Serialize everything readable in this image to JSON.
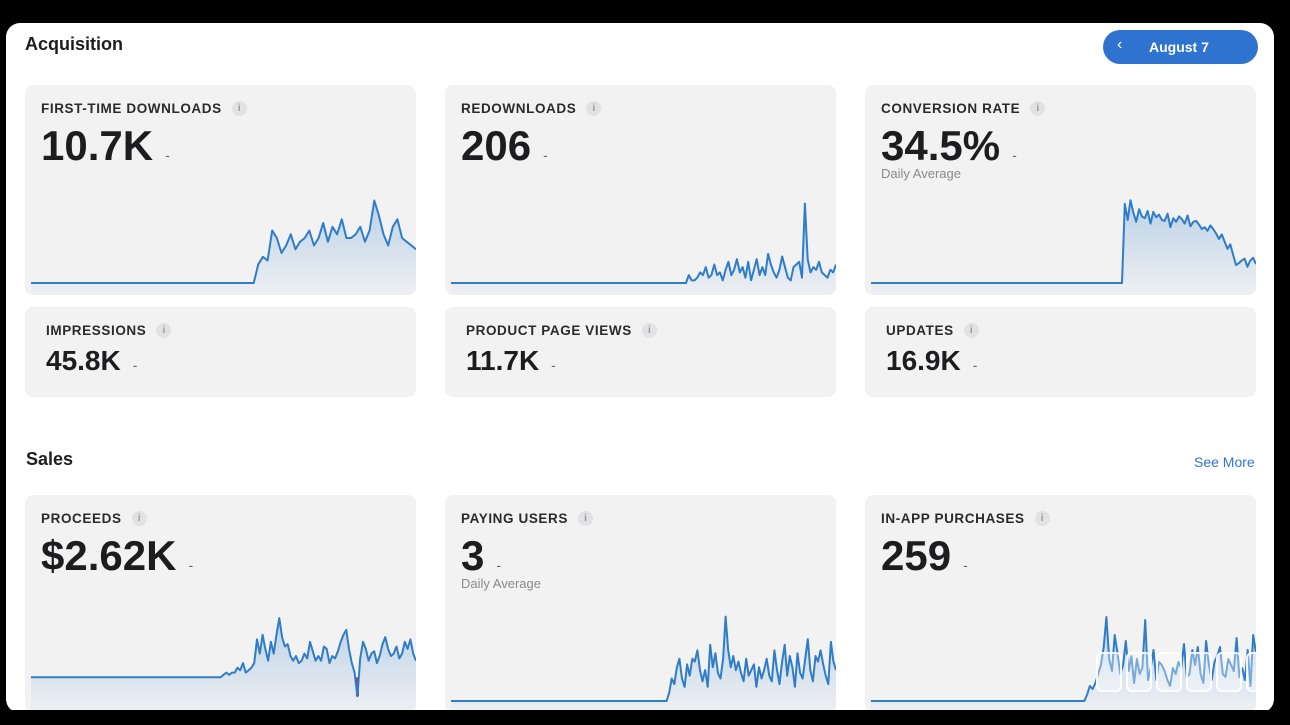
{
  "acquisition": {
    "title": "Acquisition",
    "date_button": "August 7",
    "cards": [
      {
        "label": "FIRST-TIME DOWNLOADS",
        "value": "10.7K",
        "trend": [
          0,
          0,
          0,
          0,
          0,
          0,
          0,
          0,
          0,
          0,
          0,
          0,
          0,
          0,
          0,
          0,
          0,
          0,
          0,
          0,
          0,
          0,
          0,
          0,
          0,
          0,
          0,
          0,
          0,
          0,
          0,
          0,
          0,
          0,
          0,
          0,
          0,
          0,
          0,
          0,
          0,
          0,
          0,
          0,
          0,
          0,
          0,
          0,
          0,
          5,
          7,
          6,
          14,
          12,
          8,
          10,
          13,
          9,
          11,
          12,
          14,
          10,
          12,
          16,
          11,
          15,
          13,
          17,
          12,
          12,
          13,
          15,
          11,
          14,
          22,
          18,
          13,
          10,
          15,
          17,
          12,
          11,
          10,
          9
        ]
      },
      {
        "label": "REDOWNLOADS",
        "value": "206",
        "trend": [
          0,
          0,
          0,
          0,
          0,
          0,
          0,
          0,
          0,
          0,
          0,
          0,
          0,
          0,
          0,
          0,
          0,
          0,
          0,
          0,
          0,
          0,
          0,
          0,
          0,
          0,
          0,
          0,
          0,
          0,
          0,
          0,
          0,
          0,
          0,
          0,
          0,
          0,
          0,
          0,
          0,
          0,
          0,
          0,
          0,
          0,
          0,
          0,
          0,
          0,
          0,
          0,
          0,
          0,
          0,
          0,
          0,
          0,
          0,
          0,
          0,
          0,
          0,
          0,
          0,
          0,
          0,
          0,
          0,
          0,
          0,
          0,
          0,
          0,
          0,
          0,
          0,
          0,
          0,
          0,
          0,
          0,
          0,
          0,
          3,
          1,
          1,
          2,
          4,
          3,
          6,
          2,
          3,
          7,
          3,
          4,
          1,
          5,
          8,
          3,
          5,
          9,
          4,
          6,
          2,
          8,
          1,
          5,
          9,
          3,
          6,
          3,
          11,
          7,
          4,
          2,
          5,
          10,
          6,
          2,
          1,
          6,
          7,
          8,
          2,
          30,
          9,
          4,
          6,
          5,
          8,
          4,
          3,
          2,
          5,
          4,
          7
        ]
      },
      {
        "label": "CONVERSION RATE",
        "value": "34.5%",
        "sub": "Daily Average",
        "trend": [
          0,
          0,
          0,
          0,
          0,
          0,
          0,
          0,
          0,
          0,
          0,
          0,
          0,
          0,
          0,
          0,
          0,
          0,
          0,
          0,
          0,
          0,
          0,
          0,
          0,
          0,
          0,
          0,
          0,
          0,
          0,
          0,
          0,
          0,
          0,
          0,
          0,
          0,
          0,
          0,
          0,
          0,
          0,
          0,
          0,
          0,
          0,
          0,
          0,
          0,
          0,
          0,
          0,
          0,
          0,
          0,
          0,
          0,
          0,
          0,
          0,
          0,
          0,
          0,
          0,
          0,
          0,
          0,
          0,
          0,
          0,
          0,
          0,
          0,
          0,
          0,
          0,
          0,
          0,
          0,
          0,
          0,
          0,
          0,
          0,
          0,
          0,
          0,
          0,
          88,
          70,
          92,
          78,
          68,
          82,
          74,
          72,
          80,
          66,
          79,
          73,
          76,
          70,
          69,
          77,
          62,
          72,
          68,
          74,
          71,
          66,
          75,
          63,
          68,
          69,
          65,
          60,
          62,
          58,
          64,
          60,
          55,
          49,
          54,
          46,
          38,
          43,
          31,
          20,
          22,
          25,
          27,
          18,
          25,
          28,
          21
        ]
      },
      {
        "label": "IMPRESSIONS",
        "value": "45.8K"
      },
      {
        "label": "PRODUCT PAGE VIEWS",
        "value": "11.7K"
      },
      {
        "label": "UPDATES",
        "value": "16.9K"
      }
    ]
  },
  "sales": {
    "title": "Sales",
    "see_more": "See More",
    "cards": [
      {
        "label": "PROCEEDS",
        "value": "$2.62K",
        "trend": [
          0,
          0,
          0,
          0,
          0,
          0,
          0,
          0,
          0,
          0,
          0,
          0,
          0,
          0,
          0,
          0,
          0,
          0,
          0,
          0,
          0,
          0,
          0,
          0,
          0,
          0,
          0,
          0,
          0,
          0,
          0,
          0,
          0,
          0,
          0,
          0,
          0,
          0,
          0,
          0,
          0,
          0,
          0,
          0,
          0,
          0,
          0,
          0,
          0,
          0,
          0,
          0,
          0,
          0,
          0,
          0,
          0,
          0,
          0,
          0,
          0,
          0,
          0,
          0,
          0,
          0,
          0,
          0,
          0,
          1,
          2,
          1,
          2,
          2,
          4,
          3,
          6,
          2,
          3,
          4,
          6,
          16,
          10,
          18,
          12,
          7,
          15,
          10,
          18,
          25,
          17,
          13,
          14,
          9,
          7,
          9,
          6,
          7,
          10,
          8,
          15,
          11,
          7,
          9,
          7,
          13,
          12,
          6,
          9,
          8,
          11,
          15,
          18,
          20,
          12,
          6,
          2,
          -8,
          8,
          15,
          12,
          7,
          10,
          11,
          6,
          9,
          14,
          17,
          12,
          9,
          10,
          13,
          8,
          10,
          15,
          12,
          16,
          10,
          7
        ]
      },
      {
        "label": "PAYING USERS",
        "value": "3",
        "sub": "Daily Average",
        "trend": [
          0,
          0,
          0,
          0,
          0,
          0,
          0,
          0,
          0,
          0,
          0,
          0,
          0,
          0,
          0,
          0,
          0,
          0,
          0,
          0,
          0,
          0,
          0,
          0,
          0,
          0,
          0,
          0,
          0,
          0,
          0,
          0,
          0,
          0,
          0,
          0,
          0,
          0,
          0,
          0,
          0,
          0,
          0,
          0,
          0,
          0,
          0,
          0,
          0,
          0,
          0,
          0,
          0,
          0,
          0,
          0,
          0,
          0,
          0,
          0,
          0,
          0,
          0,
          0,
          0,
          0,
          0,
          0,
          0,
          0,
          0,
          0,
          0,
          0,
          0,
          0,
          0,
          0,
          0,
          0,
          0,
          0,
          0,
          0,
          0,
          3,
          8,
          6,
          12,
          15,
          8,
          5,
          13,
          9,
          15,
          14,
          18,
          11,
          7,
          11,
          5,
          20,
          12,
          17,
          10,
          8,
          15,
          30,
          18,
          12,
          16,
          11,
          14,
          10,
          7,
          15,
          9,
          11,
          13,
          5,
          12,
          8,
          11,
          15,
          9,
          7,
          18,
          11,
          6,
          14,
          20,
          9,
          16,
          12,
          5,
          17,
          10,
          8,
          15,
          22,
          11,
          7,
          16,
          14,
          18,
          13,
          9,
          6,
          21,
          14,
          11
        ]
      },
      {
        "label": "IN-APP PURCHASES",
        "value": "259",
        "trend": [
          0,
          0,
          0,
          0,
          0,
          0,
          0,
          0,
          0,
          0,
          0,
          0,
          0,
          0,
          0,
          0,
          0,
          0,
          0,
          0,
          0,
          0,
          0,
          0,
          0,
          0,
          0,
          0,
          0,
          0,
          0,
          0,
          0,
          0,
          0,
          0,
          0,
          0,
          0,
          0,
          0,
          0,
          0,
          0,
          0,
          0,
          0,
          0,
          0,
          0,
          0,
          0,
          0,
          0,
          0,
          0,
          0,
          0,
          0,
          0,
          0,
          0,
          0,
          0,
          0,
          0,
          0,
          0,
          0,
          0,
          0,
          0,
          0,
          0,
          0,
          0,
          0,
          0,
          2,
          5,
          4,
          6,
          9,
          12,
          18,
          28,
          14,
          10,
          22,
          16,
          9,
          12,
          20,
          10,
          15,
          6,
          14,
          9,
          11,
          27,
          7,
          11,
          17,
          7,
          13,
          12,
          10,
          7,
          5,
          11,
          9,
          13,
          11,
          19,
          8,
          9,
          17,
          12,
          18,
          9,
          6,
          20,
          12,
          7,
          13,
          15,
          18,
          9,
          8,
          14,
          12,
          10,
          21,
          8,
          11,
          7,
          17,
          5,
          22,
          16
        ]
      }
    ]
  },
  "colors": {
    "accent": "#2f73d1",
    "line": "#2f7dc8",
    "negative": "#e0202a",
    "card_bg": "#f2f2f3"
  }
}
